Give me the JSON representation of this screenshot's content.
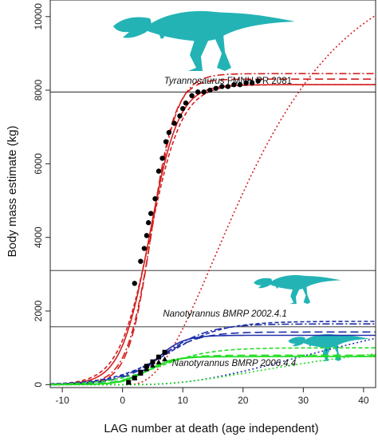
{
  "chart_data": {
    "type": "scatter",
    "xlabel": "LAG number at death (age independent)",
    "ylabel": "Body mass estimate (kg)",
    "xlim": [
      -12,
      42
    ],
    "ylim": [
      -80,
      10450
    ],
    "xticks": [
      -10,
      0,
      10,
      20,
      30,
      40
    ],
    "yticks": [
      0,
      2000,
      4000,
      6000,
      8000,
      10000
    ],
    "grid": false,
    "legend": "none",
    "reference_lines": [
      7950,
      3100,
      1570
    ],
    "annotations": [
      {
        "id": "tyrannosaurus",
        "italic": "Tyrannosaurus",
        "rest": " FMNH PR 2081",
        "x": 17.5,
        "y": 8170
      },
      {
        "id": "nano1",
        "italic": "Nanotyrannus BMRP 2002.4.1",
        "rest": "",
        "x": 17,
        "y": 1850
      },
      {
        "id": "nano2",
        "italic": "Nanotyrannus BMRP 2006.4.4",
        "rest": "",
        "x": 18.5,
        "y": 500
      }
    ],
    "series": [
      {
        "group": "Tyrannosaurus",
        "color": "#000000",
        "marker": "circle",
        "points": [
          [
            2,
            2750
          ],
          [
            3,
            3350
          ],
          [
            3.6,
            3700
          ],
          [
            4,
            4050
          ],
          [
            4.3,
            4400
          ],
          [
            4.7,
            4650
          ],
          [
            5.4,
            5050
          ],
          [
            6,
            5800
          ],
          [
            6.6,
            6150
          ],
          [
            7.2,
            6600
          ],
          [
            7.7,
            6850
          ],
          [
            8.6,
            7100
          ],
          [
            9.5,
            7300
          ],
          [
            10,
            7500
          ],
          [
            10.5,
            7650
          ],
          [
            11.5,
            7850
          ],
          [
            12.5,
            7950
          ],
          [
            13.5,
            7950
          ],
          [
            14.5,
            8000
          ],
          [
            15.5,
            8050
          ],
          [
            16.5,
            8100
          ],
          [
            17.5,
            8100
          ],
          [
            18.5,
            8150
          ],
          [
            19.5,
            8150
          ],
          [
            20.5,
            8200
          ],
          [
            21.5,
            8200
          ],
          [
            22.5,
            8250
          ]
        ]
      },
      {
        "group": "Nanotyrannus BMRP 2002.4.1",
        "color": "#000000",
        "marker": "square",
        "points": [
          [
            1,
            60
          ],
          [
            2,
            180
          ],
          [
            3,
            340
          ],
          [
            4,
            500
          ],
          [
            5,
            620
          ],
          [
            6,
            750
          ],
          [
            7,
            880
          ]
        ]
      },
      {
        "group": "Nanotyrannus BMRP 2006.4.4",
        "color": "#000000",
        "marker": "triangle",
        "points": [
          [
            1,
            60
          ],
          [
            2,
            170
          ],
          [
            3,
            300
          ],
          [
            4,
            420
          ],
          [
            5,
            520
          ],
          [
            6,
            610
          ],
          [
            7,
            690
          ]
        ]
      }
    ],
    "fits": [
      {
        "group": "Tyrannosaurus",
        "color": "#d32020",
        "dash": "solid",
        "model": "logistic",
        "A": 8150,
        "k": 0.42,
        "x0": 4.5,
        "y0": 0
      },
      {
        "group": "Tyrannosaurus",
        "color": "#d32020",
        "dash": "long-dash",
        "model": "logistic",
        "A": 8300,
        "k": 0.52,
        "x0": 4.8,
        "y0": 0
      },
      {
        "group": "Tyrannosaurus",
        "color": "#d32020",
        "dash": "dash-dot",
        "model": "logistic",
        "A": 8450,
        "k": 0.48,
        "x0": 4.9,
        "y0": 0
      },
      {
        "group": "Tyrannosaurus",
        "color": "#d32020",
        "dash": "short-dash",
        "model": "logistic",
        "A": 8150,
        "k": 0.38,
        "x0": 4.6,
        "y0": 0
      },
      {
        "group": "Tyrannosaurus",
        "color": "#d32020",
        "dash": "dotted",
        "model": "vonBertalanffy",
        "A": 11500,
        "k": 0.075,
        "x0": 0.5
      },
      {
        "group": "Nanotyrannus BMRP 2002.4.1",
        "color": "#1f2fa8",
        "dash": "solid",
        "model": "logistic",
        "A": 1340,
        "k": 0.45,
        "x0": 5.5,
        "y0": 0
      },
      {
        "group": "Nanotyrannus BMRP 2002.4.1",
        "color": "#1f2fa8",
        "dash": "long-dash",
        "model": "logistic",
        "A": 1430,
        "k": 0.3,
        "x0": 6,
        "y0": 0
      },
      {
        "group": "Nanotyrannus BMRP 2002.4.1",
        "color": "#1f2fa8",
        "dash": "dash-dot",
        "model": "logistic",
        "A": 1650,
        "k": 0.26,
        "x0": 6.8,
        "y0": 0
      },
      {
        "group": "Nanotyrannus BMRP 2002.4.1",
        "color": "#1f2fa8",
        "dash": "short-dash",
        "model": "logistic",
        "A": 1720,
        "k": 0.22,
        "x0": 7.6,
        "y0": 0
      },
      {
        "group": "Nanotyrannus BMRP 2002.4.1",
        "color": "#1f2fa8",
        "dash": "dotted",
        "model": "vonBertalanffy",
        "A": 2400,
        "k": 0.04,
        "x0": 1.0
      },
      {
        "group": "Nanotyrannus BMRP 2006.4.4",
        "color": "#22dd22",
        "dash": "solid",
        "model": "logistic",
        "A": 760,
        "k": 0.45,
        "x0": 4.2,
        "y0": 0
      },
      {
        "group": "Nanotyrannus BMRP 2006.4.4",
        "color": "#22dd22",
        "dash": "long-dash",
        "model": "logistic",
        "A": 800,
        "k": 0.38,
        "x0": 4.4,
        "y0": 0
      },
      {
        "group": "Nanotyrannus BMRP 2006.4.4",
        "color": "#22dd22",
        "dash": "dash-dot",
        "model": "logistic",
        "A": 760,
        "k": 0.5,
        "x0": 4.1,
        "y0": 0
      },
      {
        "group": "Nanotyrannus BMRP 2006.4.4",
        "color": "#22dd22",
        "dash": "short-dash",
        "model": "logistic",
        "A": 1000,
        "k": 0.24,
        "x0": 6.2,
        "y0": 0
      },
      {
        "group": "Nanotyrannus BMRP 2006.4.4",
        "color": "#22dd22",
        "dash": "dotted",
        "model": "vonBertalanffy",
        "A": 1250,
        "k": 0.05,
        "x0": 0.4
      }
    ],
    "silhouette_color": "#23b3b5"
  }
}
